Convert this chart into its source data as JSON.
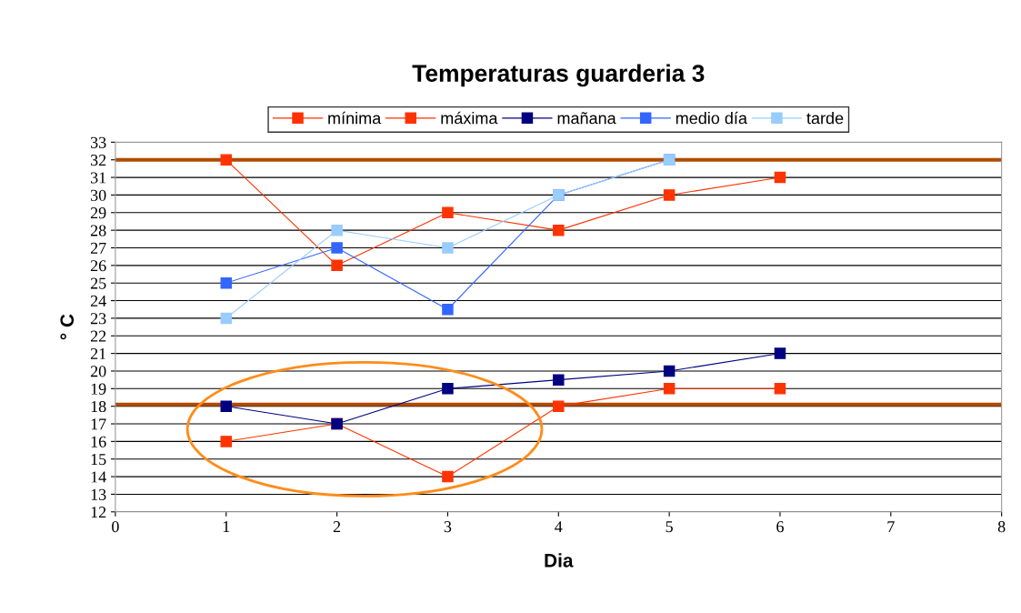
{
  "chart_data": {
    "type": "line",
    "title": "Temperaturas guarderia 3",
    "xlabel": "Dia",
    "ylabel": "° C",
    "x": [
      1,
      2,
      3,
      4,
      5,
      6
    ],
    "series": [
      {
        "name": "mínima",
        "color": "#ff3300",
        "values": [
          16,
          17,
          14,
          18,
          19,
          19
        ]
      },
      {
        "name": "máxima",
        "color": "#ff3300",
        "values": [
          32,
          26,
          29,
          28,
          30,
          31
        ]
      },
      {
        "name": "mañana",
        "color": "#000080",
        "values": [
          18,
          17,
          19,
          19.5,
          20,
          21
        ]
      },
      {
        "name": "medio día",
        "color": "#3366ff",
        "values": [
          25,
          27,
          23.5,
          30,
          32,
          null
        ]
      },
      {
        "name": "tarde",
        "color": "#99ccff",
        "values": [
          23,
          28,
          27,
          30,
          32,
          null
        ]
      }
    ],
    "xlim": [
      0,
      8
    ],
    "xticks": [
      0,
      1,
      2,
      3,
      4,
      5,
      6,
      7,
      8
    ],
    "ylim": [
      12,
      33
    ],
    "yticks": [
      12,
      13,
      14,
      15,
      16,
      17,
      18,
      19,
      20,
      21,
      22,
      23,
      24,
      25,
      26,
      27,
      28,
      29,
      30,
      31,
      32,
      33
    ],
    "ref_lines": [
      {
        "axis": "y",
        "value": 32,
        "color": "#b04a00"
      },
      {
        "axis": "y",
        "value": 18.1,
        "color": "#b04a00"
      }
    ],
    "grid": "y",
    "legend": "top",
    "marker": "square",
    "line_style": "solid"
  }
}
